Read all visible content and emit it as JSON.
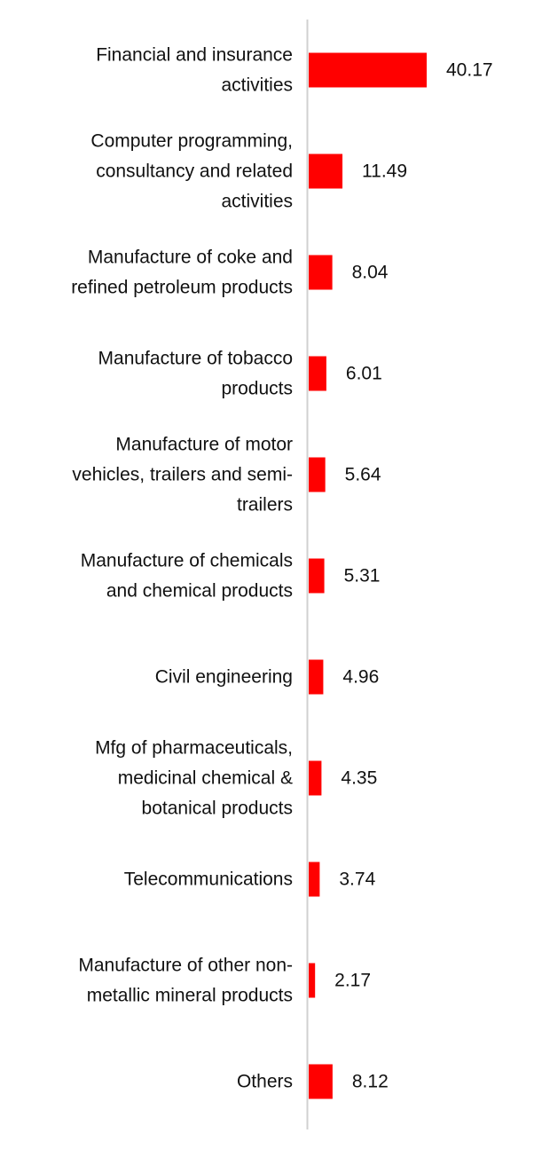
{
  "chart_data": {
    "type": "bar",
    "orientation": "horizontal",
    "categories": [
      [
        "Financial and insurance",
        "activities"
      ],
      [
        "Computer programming,",
        "consultancy and related",
        "activities"
      ],
      [
        "Manufacture of coke and",
        "refined petroleum products"
      ],
      [
        "Manufacture of tobacco",
        "products"
      ],
      [
        "Manufacture of motor",
        "vehicles, trailers and semi-",
        "trailers"
      ],
      [
        "Manufacture of chemicals",
        "and chemical products"
      ],
      [
        "Civil engineering"
      ],
      [
        "Mfg of pharmaceuticals,",
        "medicinal chemical &",
        "botanical products"
      ],
      [
        "Telecommunications"
      ],
      [
        "Manufacture of other non-",
        "metallic mineral products"
      ],
      [
        "Others"
      ]
    ],
    "values": [
      40.17,
      11.49,
      8.04,
      6.01,
      5.64,
      5.31,
      4.96,
      4.35,
      3.74,
      2.17,
      8.12
    ],
    "value_labels": [
      "40.17",
      "11.49",
      "8.04",
      "6.01",
      "5.64",
      "5.31",
      "4.96",
      "4.35",
      "3.74",
      "2.17",
      "8.12"
    ],
    "bar_color": "#ff0000",
    "axis_color": "#d0d0d0",
    "xlim": [
      0,
      40.17
    ],
    "title": "",
    "xlabel": "",
    "ylabel": "",
    "grid": false,
    "legend": "none"
  }
}
